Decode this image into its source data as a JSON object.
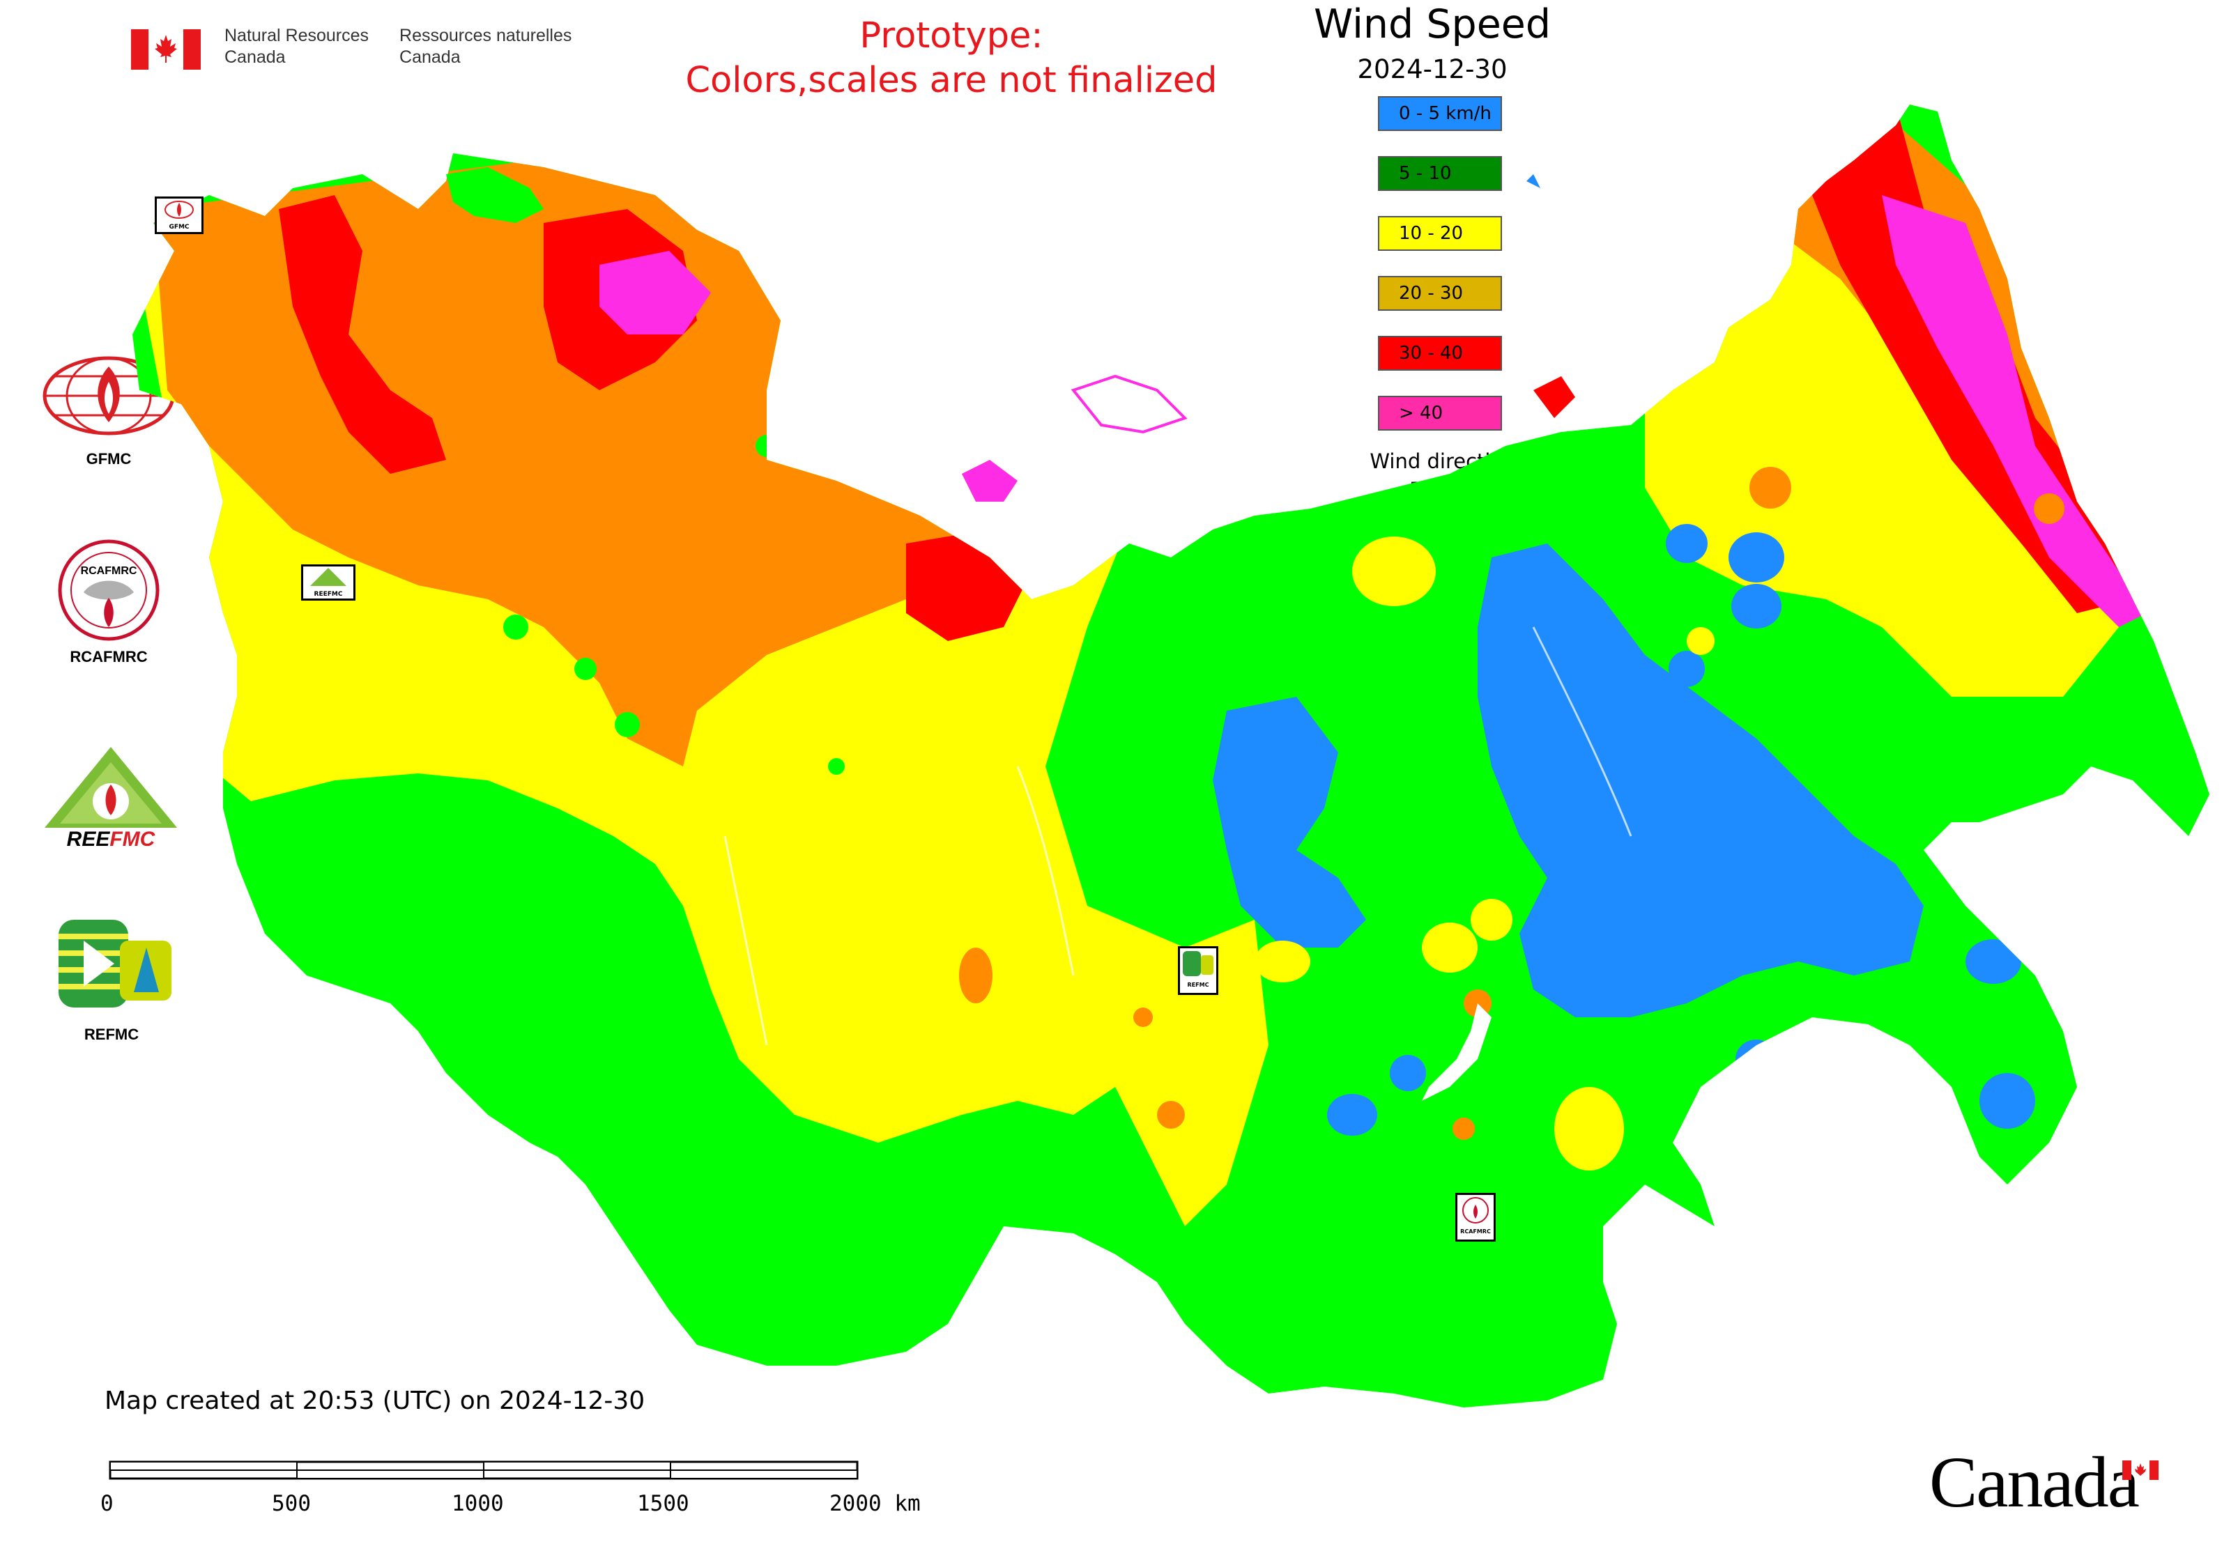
{
  "header": {
    "dept_en": [
      "Natural Resources",
      "Canada"
    ],
    "dept_fr": [
      "Ressources naturelles",
      "Canada"
    ],
    "prototype_line1": "Prototype:",
    "prototype_line2": "Colors,scales are not finalized"
  },
  "legend": {
    "title": "Wind Speed",
    "date": "2024-12-30",
    "items": [
      {
        "label": "0 - 5 km/h",
        "color": "#1e8cff"
      },
      {
        "label": "5 - 10",
        "color": "#008c00"
      },
      {
        "label": "10 - 20",
        "color": "#ffff00"
      },
      {
        "label": "20 - 30",
        "color": "#dcb400"
      },
      {
        "label": "30 - 40",
        "color": "#ff0000"
      },
      {
        "label": "> 40",
        "color": "#ff2ca8"
      }
    ],
    "wind_direction_label": "Wind direction"
  },
  "map_colors": {
    "calm": "#1e8cff",
    "low": "#00ff00",
    "moderate": "#ffff00",
    "high": "#ff8c00",
    "very_high": "#ff0000",
    "extreme": "#ff2ce6",
    "border": "#c050c0"
  },
  "logos": [
    {
      "label": "GFMC",
      "icon": "gfmc-logo"
    },
    {
      "label": "RCAFMRC",
      "icon": "rcafmrc-logo"
    },
    {
      "label": "REEFMC",
      "icon": "reefmc-logo"
    },
    {
      "label": "REFMC",
      "icon": "refmc-logo"
    }
  ],
  "map_badges": [
    {
      "label": "GFMC"
    },
    {
      "label": "REEFMC"
    },
    {
      "label": "REFMC"
    },
    {
      "label": "RCAFMRC"
    }
  ],
  "footer": {
    "created": "Map created at 20:53 (UTC) on 2024-12-30",
    "scale_ticks": [
      "0",
      "500",
      "1000",
      "1500",
      "2000 km"
    ],
    "wordmark": "Canada"
  }
}
